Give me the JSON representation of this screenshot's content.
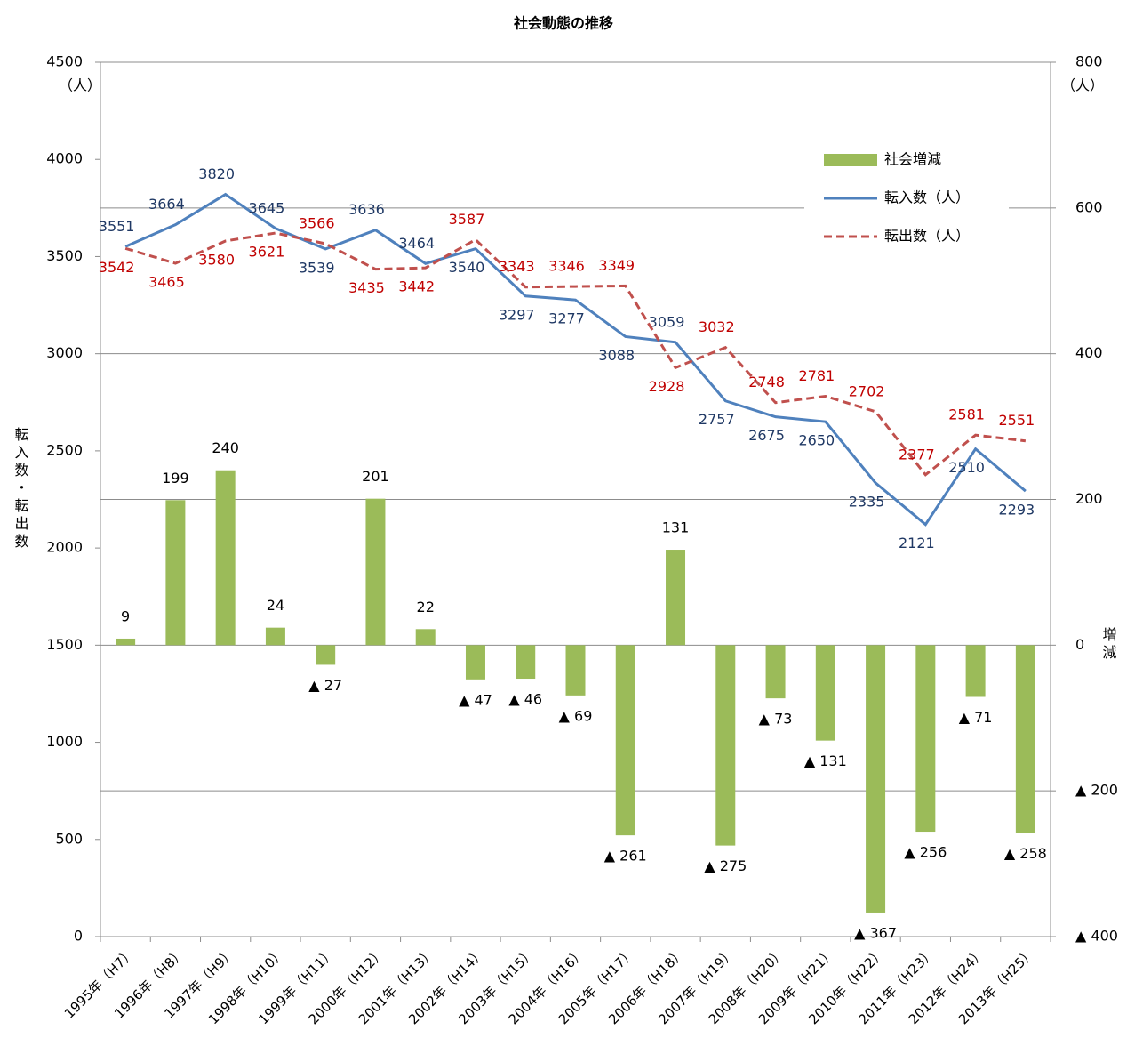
{
  "chart_data": {
    "type": "combo",
    "title": "社会動態の推移",
    "y_label": "転入数・転出数",
    "y2_label": "増減",
    "y_unit": "（人）",
    "y2_unit": "（人）",
    "categories": [
      "1995年（H7）",
      "1996年（H8）",
      "1997年（H9）",
      "1998年（H10）",
      "1999年（H11）",
      "2000年（H12）",
      "2001年（H13）",
      "2002年（H14）",
      "2003年（H15）",
      "2004年（H16）",
      "2005年（H17）",
      "2006年（H18）",
      "2007年（H19）",
      "2008年（H20）",
      "2009年（H21）",
      "2010年（H22）",
      "2011年（H23）",
      "2012年（H24）",
      "2013年（H25）"
    ],
    "series": [
      {
        "name": "社会増減",
        "type": "bar",
        "axis": "y2",
        "color": "#9bbb59",
        "values": [
          9,
          199,
          240,
          24,
          -27,
          201,
          22,
          -47,
          -46,
          -69,
          -261,
          131,
          -275,
          -73,
          -131,
          -367,
          -256,
          -71,
          -258
        ],
        "value_labels": [
          "9",
          "199",
          "240",
          "24",
          "▲ 27",
          "201",
          "22",
          "▲ 47",
          "▲ 46",
          "▲ 69",
          "▲ 261",
          "131",
          "▲ 275",
          "▲ 73",
          "▲ 131",
          "▲ 367",
          "▲ 256",
          "▲ 71",
          "▲ 258"
        ]
      },
      {
        "name": "転入数（人）",
        "type": "line",
        "color": "#4f81bd",
        "label_color": "#1f3864",
        "values": [
          3551,
          3664,
          3820,
          3645,
          3539,
          3636,
          3464,
          3540,
          3297,
          3277,
          3088,
          3059,
          2757,
          2675,
          2650,
          2335,
          2121,
          2510,
          2293
        ]
      },
      {
        "name": "転出数（人）",
        "type": "line",
        "dashed": true,
        "color": "#c0504d",
        "label_color": "#c00000",
        "values": [
          3542,
          3465,
          3580,
          3621,
          3566,
          3435,
          3442,
          3587,
          3343,
          3346,
          3349,
          2928,
          3032,
          2748,
          2781,
          2702,
          2377,
          2581,
          2551
        ]
      }
    ],
    "ylim": [
      0,
      4500
    ],
    "yticks": [
      0,
      500,
      1000,
      1500,
      2000,
      2500,
      3000,
      3500,
      4000,
      4500
    ],
    "y2lim": [
      -400,
      800
    ],
    "y2ticks": [
      {
        "value": -400,
        "label": "▲ 400"
      },
      {
        "value": -200,
        "label": "▲ 200"
      },
      0,
      200,
      400,
      600,
      800
    ],
    "grid": true,
    "legend": "upper right"
  }
}
